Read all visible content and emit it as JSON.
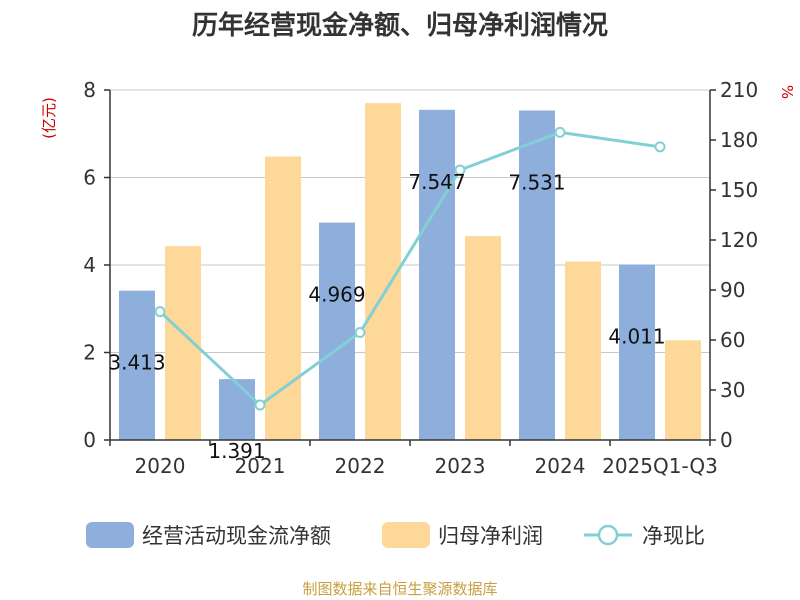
{
  "chart_data": {
    "type": "bar",
    "title": "历年经营现金净额、归母净利润情况",
    "categories": [
      "2020",
      "2021",
      "2022",
      "2023",
      "2024",
      "2025Q1-Q3"
    ],
    "series": [
      {
        "name": "经营活动现金流净额",
        "type": "bar",
        "axis": "left",
        "color": "#8eaedc",
        "values": [
          3.413,
          1.391,
          4.969,
          7.547,
          7.531,
          4.011
        ],
        "labels": [
          "3.413",
          "1.391",
          "4.969",
          "7.547",
          "7.531",
          "4.011"
        ]
      },
      {
        "name": "归母净利润",
        "type": "bar",
        "axis": "left",
        "color": "#fdd898",
        "values": [
          4.43,
          6.48,
          7.7,
          4.66,
          4.08,
          2.28
        ]
      },
      {
        "name": "净现比",
        "type": "line",
        "axis": "right",
        "color": "#82d0d6",
        "values": [
          77,
          21,
          64.5,
          162,
          184.6,
          175.9
        ]
      }
    ],
    "ylabel_left": "(亿元)",
    "ylabel_right": "%",
    "ylim_left": [
      0,
      8
    ],
    "yticks_left": [
      "0",
      "2",
      "4",
      "6",
      "8"
    ],
    "ylim_right": [
      0,
      210
    ],
    "yticks_right": [
      "0",
      "30",
      "60",
      "90",
      "120",
      "150",
      "180",
      "210"
    ],
    "grid": true,
    "legend_position": "bottom",
    "source": "制图数据来自恒生聚源数据库"
  }
}
